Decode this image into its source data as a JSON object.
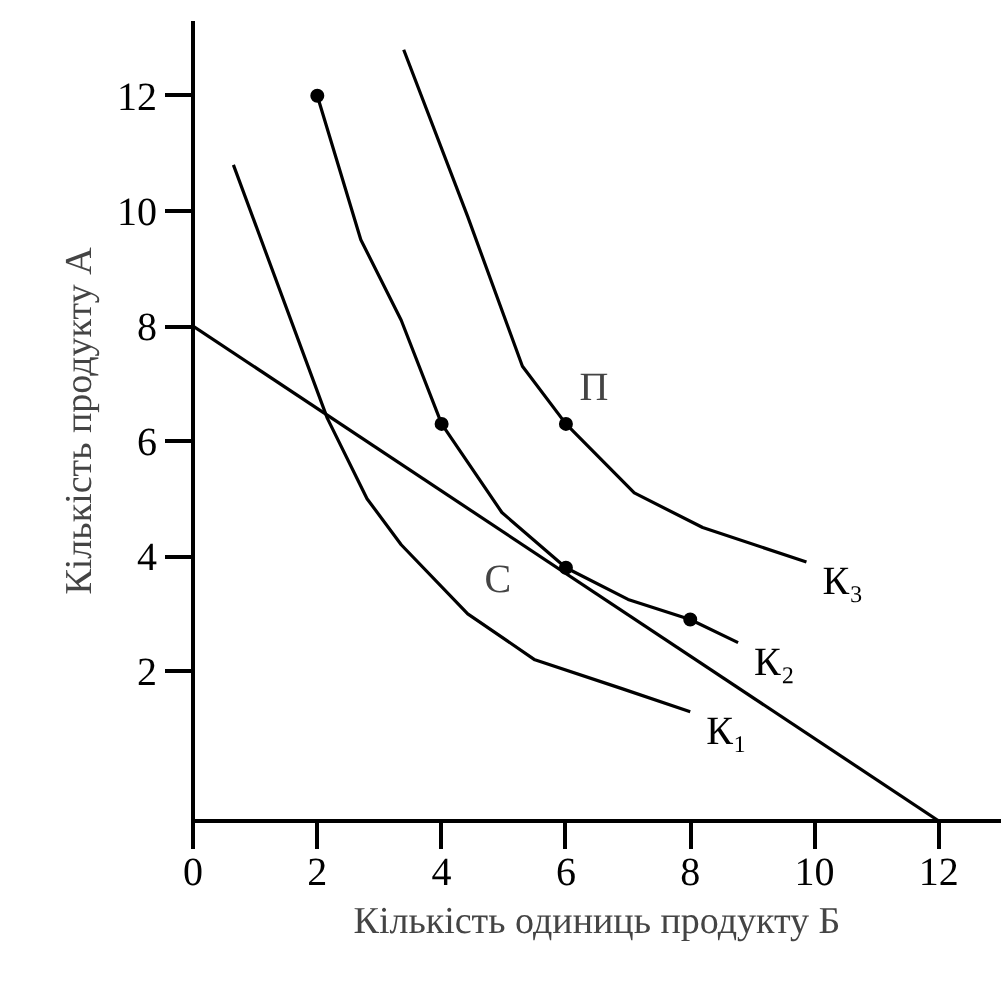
{
  "chart_data": {
    "type": "line",
    "xlabel": "Кількість одиниць продукту Б",
    "ylabel": "Кількість продукту А",
    "xlim": [
      0,
      13
    ],
    "ylim": [
      -0.6,
      13.3
    ],
    "xticks": [
      0,
      2,
      4,
      6,
      8,
      10,
      12
    ],
    "yticks": [
      2,
      4,
      6,
      8,
      10,
      12
    ],
    "grid": false,
    "marker": "none",
    "line_style": "solid",
    "series": [
      {
        "color": "#000000",
        "x": [
          0,
          12
        ],
        "values": [
          8,
          -0.6
        ]
      },
      {
        "name": "К₁",
        "color": "#000000",
        "x": [
          0.65,
          2.16,
          2.8,
          3.35,
          4.42,
          5.5,
          6.9,
          8.0
        ],
        "values": [
          10.8,
          6.4,
          5.0,
          4.2,
          3.0,
          2.2,
          1.7,
          1.3
        ]
      },
      {
        "name": "К₂",
        "color": "#000000",
        "x": [
          2,
          2.7,
          3.35,
          4,
          4.97,
          6,
          7,
          8,
          8.77
        ],
        "values": [
          12,
          9.5,
          8.1,
          6.3,
          4.76,
          3.8,
          3.25,
          2.9,
          2.5
        ]
      },
      {
        "name": "К₃",
        "color": "#000000",
        "x": [
          3.39,
          4.42,
          5.3,
          6,
          7.1,
          8.2,
          9.87
        ],
        "values": [
          12.8,
          9.9,
          7.3,
          6.3,
          5.1,
          4.5,
          3.9
        ]
      },
      {
        "type": "scatter",
        "marker": "circle",
        "color": "#000000",
        "x": [
          2,
          4,
          6,
          8,
          6
        ],
        "values": [
          12,
          6.3,
          3.8,
          2.9,
          6.3
        ]
      }
    ],
    "annotations": [
      {
        "text": "П",
        "x": 6,
        "y": 6.3
      },
      {
        "text": "С",
        "x": 6,
        "y": 3.8
      }
    ]
  }
}
